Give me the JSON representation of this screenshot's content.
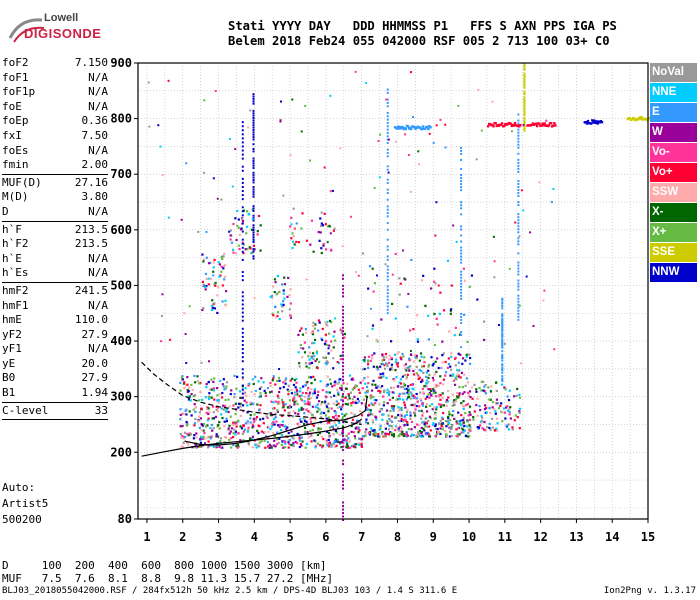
{
  "logo": {
    "line1": "Lowell",
    "line2": "DIGISONDE"
  },
  "header": {
    "line1": "Stati YYYY DAY   DDD HHMMSS P1   FFS S AXN PPS IGA PS",
    "line2": "Belem 2018 Feb24 055 042000 RSF 005 2 713 100 03+ C0"
  },
  "params": {
    "group1": [
      {
        "label": "foF2",
        "value": "7.150"
      },
      {
        "label": "foF1",
        "value": "N/A"
      },
      {
        "label": "foF1p",
        "value": "N/A"
      },
      {
        "label": "foE",
        "value": "N/A"
      },
      {
        "label": "foEp",
        "value": "0.36"
      },
      {
        "label": "fxI",
        "value": "7.50"
      },
      {
        "label": "foEs",
        "value": "N/A"
      },
      {
        "label": "fmin",
        "value": "2.00"
      }
    ],
    "group2": [
      {
        "label": "MUF(D)",
        "value": "27.16"
      },
      {
        "label": "M(D)",
        "value": "3.80"
      },
      {
        "label": "D",
        "value": "N/A"
      }
    ],
    "group3": [
      {
        "label": "h`F",
        "value": "213.5"
      },
      {
        "label": "h`F2",
        "value": "213.5"
      },
      {
        "label": "h`E",
        "value": "N/A"
      },
      {
        "label": "h`Es",
        "value": "N/A"
      }
    ],
    "group4": [
      {
        "label": "hmF2",
        "value": "241.5"
      },
      {
        "label": "hmF1",
        "value": "N/A"
      },
      {
        "label": "hmE",
        "value": "110.0"
      },
      {
        "label": "yF2",
        "value": "27.9"
      },
      {
        "label": "yF1",
        "value": "N/A"
      },
      {
        "label": "yE",
        "value": "20.0"
      },
      {
        "label": "B0",
        "value": "27.9"
      },
      {
        "label": "B1",
        "value": "1.94"
      }
    ],
    "group5": [
      {
        "label": "C-level",
        "value": "33"
      }
    ]
  },
  "auto": {
    "line1": "Auto:",
    "line2": "Artist5",
    "line3": "500200"
  },
  "legend": [
    {
      "label": "NoVal",
      "color": "#999999"
    },
    {
      "label": "NNE",
      "color": "#00ccff"
    },
    {
      "label": "E",
      "color": "#3399ff"
    },
    {
      "label": "W",
      "color": "#990099"
    },
    {
      "label": "Vo-",
      "color": "#ff3399"
    },
    {
      "label": "Vo+",
      "color": "#ff0033"
    },
    {
      "label": "SSW",
      "color": "#ffaaaa"
    },
    {
      "label": "X-",
      "color": "#006600"
    },
    {
      "label": "X+",
      "color": "#66bb44"
    },
    {
      "label": "SSE",
      "color": "#cccc00"
    },
    {
      "label": "NNW",
      "color": "#0000cc"
    }
  ],
  "muf_table": {
    "d_row": "D     100  200  400  600  800 1000 1500 3000 [km]",
    "muf_row": "MUF   7.5  7.6  8.1  8.8  9.8 11.3 15.7 27.2 [MHz]"
  },
  "footer": "BLJ03_2018055042000.RSF / 284fx512h 50 kHz 2.5 km / DPS-4D BLJ03 103 / 1.4 S 311.6 E",
  "version": "Ion2Png v. 1.3.17",
  "chart_data": {
    "type": "scatter",
    "title": "",
    "xlabel": "",
    "ylabel": "",
    "xlim": [
      0.75,
      15
    ],
    "ylim": [
      80,
      900
    ],
    "xticks": [
      1,
      2,
      3,
      4,
      5,
      6,
      7,
      8,
      9,
      10,
      11,
      12,
      13,
      14,
      15
    ],
    "yticks": [
      80,
      200,
      300,
      400,
      500,
      600,
      700,
      800,
      900
    ],
    "grid": true,
    "clusters": [
      {
        "x0": 1.9,
        "x1": 7.0,
        "y0": 210,
        "y1": 340,
        "n": 900
      },
      {
        "x0": 7.0,
        "x1": 10.0,
        "y0": 230,
        "y1": 380,
        "n": 700
      },
      {
        "x0": 10.0,
        "x1": 11.4,
        "y0": 240,
        "y1": 330,
        "n": 120
      },
      {
        "x0": 2.5,
        "x1": 3.2,
        "y0": 450,
        "y1": 560,
        "n": 60
      },
      {
        "x0": 4.4,
        "x1": 5.0,
        "y0": 440,
        "y1": 520,
        "n": 40
      },
      {
        "x0": 3.3,
        "x1": 4.2,
        "y0": 560,
        "y1": 640,
        "n": 50
      },
      {
        "x0": 4.9,
        "x1": 6.2,
        "y0": 560,
        "y1": 640,
        "n": 40
      },
      {
        "x0": 5.2,
        "x1": 6.5,
        "y0": 350,
        "y1": 440,
        "n": 90
      },
      {
        "x0": 7.0,
        "x1": 10.5,
        "y0": 400,
        "y1": 560,
        "n": 60
      }
    ],
    "echo_lines": [
      {
        "x0": 7.9,
        "x1": 8.9,
        "y": 786,
        "color": "#3399ff"
      },
      {
        "x0": 10.5,
        "x1": 11.4,
        "y": 791,
        "color": "#ff0033"
      },
      {
        "x0": 11.6,
        "x1": 12.4,
        "y": 791,
        "color": "#ff0033"
      },
      {
        "x0": 13.2,
        "x1": 13.7,
        "y": 796,
        "color": "#0000cc"
      },
      {
        "x0": 14.4,
        "x1": 15.0,
        "y": 802,
        "color": "#cccc00"
      }
    ],
    "vertical_streaks": [
      {
        "x": 3.65,
        "y0": 300,
        "y1": 810,
        "color": "#0000cc"
      },
      {
        "x": 6.45,
        "y0": 80,
        "y1": 520,
        "color": "#990099"
      },
      {
        "x": 11.52,
        "y0": 780,
        "y1": 900,
        "color": "#cccc00"
      },
      {
        "x": 10.9,
        "y0": 330,
        "y1": 480,
        "color": "#3399ff"
      },
      {
        "x": 7.7,
        "y0": 440,
        "y1": 860,
        "color": "#3399ff"
      },
      {
        "x": 9.75,
        "y0": 380,
        "y1": 760,
        "color": "#3399ff"
      },
      {
        "x": 11.35,
        "y0": 440,
        "y1": 820,
        "color": "#3399ff"
      },
      {
        "x": 3.95,
        "y0": 550,
        "y1": 850,
        "color": "#0000cc"
      }
    ],
    "model_curves": [
      {
        "name": "upper-dashed",
        "style": "dashed",
        "x": [
          0.85,
          1.2,
          1.6,
          2.0,
          2.5,
          3.0,
          3.5,
          4.0,
          4.5,
          5.0,
          5.5,
          6.0,
          6.5,
          7.0
        ],
        "y": [
          362,
          340,
          320,
          302,
          290,
          282,
          277,
          272,
          268,
          266,
          263,
          260,
          255,
          250
        ]
      },
      {
        "name": "trace",
        "style": "solid",
        "x": [
          0.85,
          1.5,
          2.0,
          2.5,
          3.0,
          3.5,
          4.0,
          4.5,
          5.0,
          5.5,
          6.0,
          6.5,
          6.85,
          7.0
        ],
        "y": [
          193,
          201,
          207,
          212,
          216,
          219,
          222,
          225,
          229,
          233,
          238,
          244,
          252,
          260
        ]
      },
      {
        "name": "profile",
        "style": "solid",
        "x": [
          2.05,
          2.5,
          3.0,
          3.5,
          4.0,
          4.5,
          5.0,
          5.5,
          6.0,
          6.5,
          6.9,
          7.1,
          7.15
        ],
        "y": [
          220,
          214,
          213,
          216,
          222,
          230,
          240,
          250,
          256,
          258,
          266,
          275,
          300
        ]
      }
    ]
  }
}
